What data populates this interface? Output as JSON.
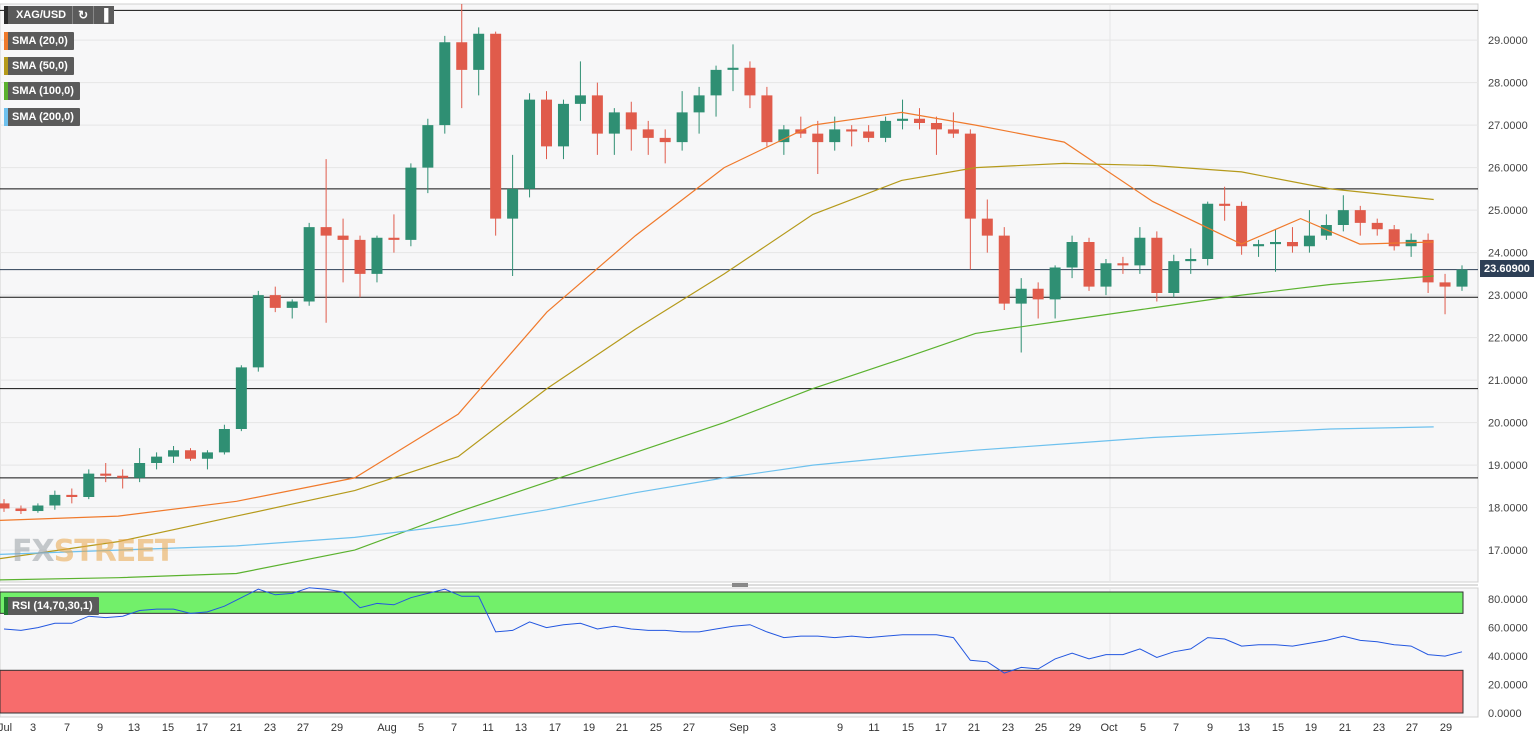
{
  "symbol": "XAG/USD",
  "indicators": [
    {
      "label": "SMA (20,0)",
      "color": "#f07a2c"
    },
    {
      "label": "SMA (50,0)",
      "color": "#b59a1b"
    },
    {
      "label": "SMA (100,0)",
      "color": "#5bb22f"
    },
    {
      "label": "SMA (200,0)",
      "color": "#6ec1ee"
    }
  ],
  "rsi_label": "RSI (14,70,30,1)",
  "watermark": {
    "fx": "FX",
    "street": "STREET"
  },
  "last_price": "23.60900",
  "colors": {
    "up": "#2f8f73",
    "down": "#e05b4b",
    "rsi_line": "#2357e0",
    "overbought": "#72f06a",
    "oversold": "#f76c6c"
  },
  "chart_data": {
    "type": "candlestick",
    "y_ticks": [
      "29.0000",
      "28.0000",
      "27.0000",
      "26.0000",
      "25.0000",
      "24.0000",
      "23.0000",
      "22.0000",
      "21.0000",
      "20.0000",
      "19.0000",
      "18.0000",
      "17.0000"
    ],
    "x_ticks": [
      "Jul",
      "3",
      "7",
      "9",
      "13",
      "15",
      "17",
      "21",
      "23",
      "27",
      "29",
      "Aug",
      "5",
      "7",
      "11",
      "13",
      "17",
      "19",
      "21",
      "25",
      "27",
      "Sep",
      "3",
      "9",
      "11",
      "15",
      "17",
      "21",
      "23",
      "25",
      "29",
      "Oct",
      "5",
      "7",
      "9",
      "13",
      "15",
      "19",
      "21",
      "23",
      "27",
      "29"
    ],
    "rsi_ticks": [
      "80.0000",
      "60.0000",
      "40.0000",
      "20.0000",
      "0.0000"
    ],
    "horizontal_levels": [
      29.7,
      25.5,
      23.6,
      22.95,
      20.8,
      18.7
    ],
    "candles": [
      [
        18.1,
        18.2,
        17.9,
        17.98
      ],
      [
        17.98,
        18.05,
        17.85,
        17.92
      ],
      [
        17.92,
        18.1,
        17.88,
        18.05
      ],
      [
        18.05,
        18.4,
        17.95,
        18.3
      ],
      [
        18.3,
        18.45,
        18.1,
        18.25
      ],
      [
        18.25,
        18.9,
        18.2,
        18.8
      ],
      [
        18.8,
        19.05,
        18.6,
        18.75
      ],
      [
        18.75,
        18.9,
        18.45,
        18.7
      ],
      [
        18.7,
        19.4,
        18.6,
        19.05
      ],
      [
        19.05,
        19.3,
        18.9,
        19.2
      ],
      [
        19.2,
        19.45,
        19.05,
        19.35
      ],
      [
        19.35,
        19.4,
        19.1,
        19.15
      ],
      [
        19.15,
        19.35,
        18.9,
        19.3
      ],
      [
        19.3,
        19.95,
        19.25,
        19.85
      ],
      [
        19.85,
        21.35,
        19.8,
        21.3
      ],
      [
        21.3,
        23.1,
        21.2,
        23.0
      ],
      [
        23.0,
        23.2,
        22.6,
        22.7
      ],
      [
        22.7,
        22.9,
        22.45,
        22.85
      ],
      [
        22.85,
        24.7,
        22.75,
        24.6
      ],
      [
        24.6,
        26.2,
        22.35,
        24.4
      ],
      [
        24.4,
        24.8,
        23.3,
        24.3
      ],
      [
        24.3,
        24.4,
        22.95,
        23.5
      ],
      [
        23.5,
        24.4,
        23.3,
        24.35
      ],
      [
        24.35,
        24.9,
        24.0,
        24.3
      ],
      [
        24.3,
        26.1,
        24.15,
        26.0
      ],
      [
        26.0,
        27.15,
        25.4,
        27.0
      ],
      [
        27.0,
        29.1,
        26.8,
        28.95
      ],
      [
        28.95,
        29.85,
        27.4,
        28.3
      ],
      [
        28.3,
        29.3,
        27.7,
        29.15
      ],
      [
        29.15,
        29.2,
        24.4,
        24.8
      ],
      [
        24.8,
        26.3,
        23.45,
        25.5
      ],
      [
        25.5,
        27.75,
        25.3,
        27.6
      ],
      [
        27.6,
        27.8,
        26.2,
        26.5
      ],
      [
        26.5,
        27.6,
        26.2,
        27.5
      ],
      [
        27.5,
        28.5,
        27.1,
        27.7
      ],
      [
        27.7,
        28.0,
        26.3,
        26.8
      ],
      [
        26.8,
        27.4,
        26.3,
        27.3
      ],
      [
        27.3,
        27.55,
        26.4,
        26.9
      ],
      [
        26.9,
        27.1,
        26.3,
        26.7
      ],
      [
        26.7,
        26.9,
        26.1,
        26.6
      ],
      [
        26.6,
        27.8,
        26.4,
        27.3
      ],
      [
        27.3,
        27.9,
        26.8,
        27.7
      ],
      [
        27.7,
        28.4,
        27.2,
        28.3
      ],
      [
        28.3,
        28.9,
        27.8,
        28.35
      ],
      [
        28.35,
        28.5,
        27.4,
        27.7
      ],
      [
        27.7,
        27.9,
        26.5,
        26.6
      ],
      [
        26.6,
        27.0,
        26.3,
        26.9
      ],
      [
        26.9,
        27.2,
        26.7,
        26.8
      ],
      [
        26.8,
        27.1,
        25.85,
        26.6
      ],
      [
        26.6,
        27.2,
        26.4,
        26.9
      ],
      [
        26.9,
        27.0,
        26.5,
        26.85
      ],
      [
        26.85,
        27.0,
        26.6,
        26.7
      ],
      [
        26.7,
        27.2,
        26.6,
        27.1
      ],
      [
        27.1,
        27.6,
        26.9,
        27.15
      ],
      [
        27.15,
        27.4,
        26.9,
        27.05
      ],
      [
        27.05,
        27.2,
        26.3,
        26.9
      ],
      [
        26.9,
        27.3,
        26.7,
        26.8
      ],
      [
        26.8,
        26.9,
        23.6,
        24.8
      ],
      [
        24.8,
        25.25,
        24.0,
        24.4
      ],
      [
        24.4,
        24.6,
        22.65,
        22.8
      ],
      [
        22.8,
        23.4,
        21.65,
        23.15
      ],
      [
        23.15,
        23.3,
        22.45,
        22.9
      ],
      [
        22.9,
        23.7,
        22.45,
        23.65
      ],
      [
        23.65,
        24.4,
        23.4,
        24.25
      ],
      [
        24.25,
        24.35,
        23.1,
        23.2
      ],
      [
        23.2,
        23.85,
        23.0,
        23.75
      ],
      [
        23.75,
        23.9,
        23.5,
        23.7
      ],
      [
        23.7,
        24.6,
        23.5,
        24.35
      ],
      [
        24.35,
        24.5,
        22.85,
        23.05
      ],
      [
        23.05,
        23.95,
        22.95,
        23.8
      ],
      [
        23.8,
        24.1,
        23.5,
        23.85
      ],
      [
        23.85,
        25.2,
        23.7,
        25.15
      ],
      [
        25.15,
        25.55,
        24.75,
        25.1
      ],
      [
        25.1,
        25.2,
        23.95,
        24.15
      ],
      [
        24.15,
        24.3,
        23.9,
        24.2
      ],
      [
        24.2,
        24.55,
        23.55,
        24.25
      ],
      [
        24.25,
        24.6,
        24.0,
        24.15
      ],
      [
        24.15,
        25.0,
        24.0,
        24.4
      ],
      [
        24.4,
        24.9,
        24.3,
        24.65
      ],
      [
        24.65,
        25.35,
        24.5,
        25.0
      ],
      [
        25.0,
        25.1,
        24.4,
        24.7
      ],
      [
        24.7,
        24.8,
        24.4,
        24.55
      ],
      [
        24.55,
        24.65,
        24.05,
        24.15
      ],
      [
        24.15,
        24.45,
        23.9,
        24.3
      ],
      [
        24.3,
        24.45,
        23.05,
        23.3
      ],
      [
        23.3,
        23.5,
        22.55,
        23.2
      ],
      [
        23.2,
        23.7,
        23.1,
        23.6
      ]
    ],
    "sma20": [
      [
        0,
        17.7
      ],
      [
        0.08,
        17.8
      ],
      [
        0.16,
        18.15
      ],
      [
        0.24,
        18.7
      ],
      [
        0.31,
        20.2
      ],
      [
        0.37,
        22.6
      ],
      [
        0.43,
        24.4
      ],
      [
        0.49,
        26.0
      ],
      [
        0.55,
        27.0
      ],
      [
        0.61,
        27.3
      ],
      [
        0.66,
        27.0
      ],
      [
        0.72,
        26.6
      ],
      [
        0.78,
        25.2
      ],
      [
        0.84,
        24.2
      ],
      [
        0.88,
        24.8
      ],
      [
        0.92,
        24.2
      ],
      [
        0.97,
        24.25
      ]
    ],
    "sma50": [
      [
        0,
        16.8
      ],
      [
        0.08,
        17.2
      ],
      [
        0.16,
        17.8
      ],
      [
        0.24,
        18.4
      ],
      [
        0.31,
        19.2
      ],
      [
        0.37,
        20.8
      ],
      [
        0.43,
        22.2
      ],
      [
        0.49,
        23.5
      ],
      [
        0.55,
        24.9
      ],
      [
        0.61,
        25.7
      ],
      [
        0.66,
        26.0
      ],
      [
        0.72,
        26.1
      ],
      [
        0.78,
        26.05
      ],
      [
        0.84,
        25.9
      ],
      [
        0.9,
        25.5
      ],
      [
        0.97,
        25.25
      ]
    ],
    "sma100": [
      [
        0,
        16.3
      ],
      [
        0.08,
        16.35
      ],
      [
        0.16,
        16.45
      ],
      [
        0.24,
        17.0
      ],
      [
        0.31,
        17.9
      ],
      [
        0.37,
        18.6
      ],
      [
        0.43,
        19.3
      ],
      [
        0.49,
        20.0
      ],
      [
        0.55,
        20.8
      ],
      [
        0.61,
        21.5
      ],
      [
        0.66,
        22.1
      ],
      [
        0.72,
        22.4
      ],
      [
        0.78,
        22.7
      ],
      [
        0.84,
        23.0
      ],
      [
        0.9,
        23.25
      ],
      [
        0.97,
        23.45
      ]
    ],
    "sma200": [
      [
        0,
        16.9
      ],
      [
        0.08,
        17.0
      ],
      [
        0.16,
        17.1
      ],
      [
        0.24,
        17.3
      ],
      [
        0.31,
        17.6
      ],
      [
        0.37,
        17.95
      ],
      [
        0.43,
        18.35
      ],
      [
        0.49,
        18.7
      ],
      [
        0.55,
        19.0
      ],
      [
        0.61,
        19.2
      ],
      [
        0.66,
        19.35
      ],
      [
        0.72,
        19.5
      ],
      [
        0.78,
        19.65
      ],
      [
        0.84,
        19.75
      ],
      [
        0.9,
        19.85
      ],
      [
        0.97,
        19.9
      ]
    ],
    "rsi": [
      59,
      58,
      60,
      63,
      63,
      68,
      67,
      68,
      72,
      73,
      73,
      70,
      71,
      75,
      81,
      87,
      83,
      84,
      88,
      87,
      85,
      74,
      77,
      76,
      81,
      84,
      87,
      82,
      82,
      57,
      58,
      64,
      60,
      62,
      63,
      59,
      61,
      59,
      58,
      58,
      57,
      57,
      59,
      61,
      62,
      57,
      53,
      54,
      54,
      53,
      54,
      53,
      54,
      55,
      55,
      55,
      53,
      37,
      36,
      28,
      32,
      31,
      38,
      42,
      38,
      41,
      41,
      45,
      39,
      43,
      45,
      53,
      52,
      47,
      48,
      48,
      47,
      49,
      51,
      54,
      51,
      50,
      48,
      47,
      41,
      40,
      43
    ]
  }
}
